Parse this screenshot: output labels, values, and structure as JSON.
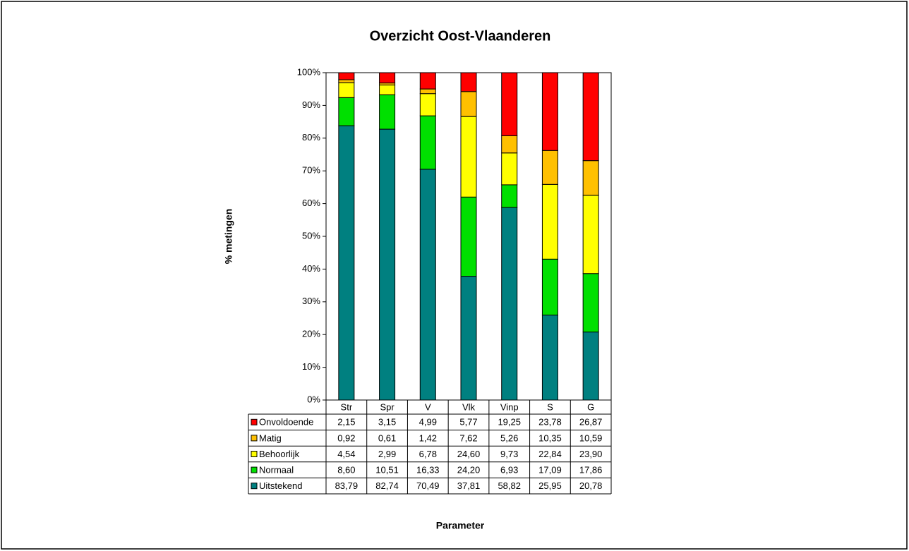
{
  "chart_data": {
    "type": "stacked_bar",
    "title": "Overzicht Oost-Vlaanderen",
    "y_label": "% metingen",
    "x_label": "Parameter",
    "categories": [
      "Str",
      "Spr",
      "V",
      "Vlk",
      "Vinp",
      "S",
      "G"
    ],
    "ylim": [
      0,
      100
    ],
    "yticks": [
      {
        "value": 0,
        "label": "0%"
      },
      {
        "value": 10,
        "label": "10%"
      },
      {
        "value": 20,
        "label": "20%"
      },
      {
        "value": 30,
        "label": "30%"
      },
      {
        "value": 40,
        "label": "40%"
      },
      {
        "value": 50,
        "label": "50%"
      },
      {
        "value": 60,
        "label": "60%"
      },
      {
        "value": 70,
        "label": "70%"
      },
      {
        "value": 80,
        "label": "80%"
      },
      {
        "value": 90,
        "label": "90%"
      },
      {
        "value": 100,
        "label": "100%"
      }
    ],
    "series": [
      {
        "name": "Onvoldoende",
        "color": "#ff0000",
        "values": [
          2.15,
          3.15,
          4.99,
          5.77,
          19.25,
          23.78,
          26.87
        ],
        "value_labels": [
          "2,15",
          "3,15",
          "4,99",
          "5,77",
          "19,25",
          "23,78",
          "26,87"
        ]
      },
      {
        "name": "Matig",
        "color": "#ffc000",
        "values": [
          0.92,
          0.61,
          1.42,
          7.62,
          5.26,
          10.35,
          10.59
        ],
        "value_labels": [
          "0,92",
          "0,61",
          "1,42",
          "7,62",
          "5,26",
          "10,35",
          "10,59"
        ]
      },
      {
        "name": "Behoorlijk",
        "color": "#ffff00",
        "values": [
          4.54,
          2.99,
          6.78,
          24.6,
          9.73,
          22.84,
          23.9
        ],
        "value_labels": [
          "4,54",
          "2,99",
          "6,78",
          "24,60",
          "9,73",
          "22,84",
          "23,90"
        ]
      },
      {
        "name": "Normaal",
        "color": "#00e000",
        "values": [
          8.6,
          10.51,
          16.33,
          24.2,
          6.93,
          17.09,
          17.86
        ],
        "value_labels": [
          "8,60",
          "10,51",
          "16,33",
          "24,20",
          "6,93",
          "17,09",
          "17,86"
        ]
      },
      {
        "name": "Uitstekend",
        "color": "#008080",
        "values": [
          83.79,
          82.74,
          70.49,
          37.81,
          58.82,
          25.95,
          20.78
        ],
        "value_labels": [
          "83,79",
          "82,74",
          "70,49",
          "37,81",
          "58,82",
          "25,95",
          "20,78"
        ]
      }
    ]
  }
}
